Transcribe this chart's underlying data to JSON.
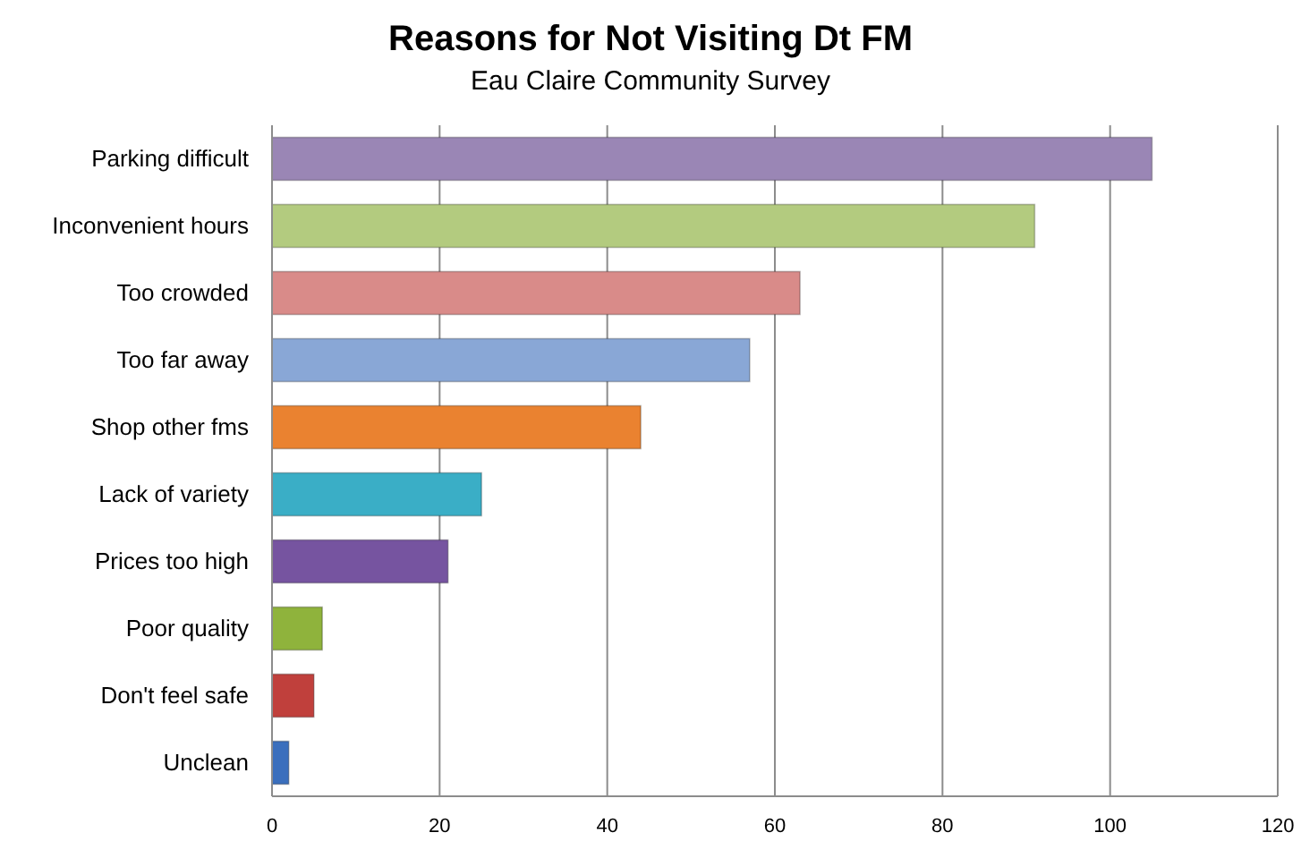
{
  "chart_data": {
    "type": "bar",
    "orientation": "horizontal",
    "title": "Reasons for Not Visiting Dt FM",
    "subtitle": "Eau Claire Community Survey",
    "categories": [
      "Parking difficult",
      "Inconvenient hours",
      "Too crowded",
      "Too far away",
      "Shop other fms",
      "Lack of variety",
      "Prices too high",
      "Poor quality",
      "Don't feel safe",
      "Unclean"
    ],
    "values": [
      105,
      91,
      63,
      57,
      44,
      25,
      21,
      6,
      5,
      2
    ],
    "colors": [
      "#9a86b5",
      "#b3cb7f",
      "#d98b89",
      "#89a7d6",
      "#ea8230",
      "#3aaec6",
      "#7654a0",
      "#8fb33c",
      "#c0403c",
      "#3b6fbd"
    ],
    "xlim": [
      0,
      120
    ],
    "xticks": [
      0,
      20,
      40,
      60,
      80,
      100,
      120
    ],
    "grid": "x"
  }
}
